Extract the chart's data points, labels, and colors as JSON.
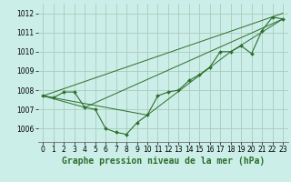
{
  "background_color": "#cceee8",
  "grid_color": "#aaccbb",
  "line_color": "#2d6e2d",
  "marker_color": "#2d6e2d",
  "xlabel": "Graphe pression niveau de la mer (hPa)",
  "xlabel_fontsize": 7,
  "tick_fontsize": 5.5,
  "xlim": [
    -0.5,
    23.5
  ],
  "ylim": [
    1005.3,
    1012.5
  ],
  "yticks": [
    1006,
    1007,
    1008,
    1009,
    1010,
    1011,
    1012
  ],
  "xticks": [
    0,
    1,
    2,
    3,
    4,
    5,
    6,
    7,
    8,
    9,
    10,
    11,
    12,
    13,
    14,
    15,
    16,
    17,
    18,
    19,
    20,
    21,
    22,
    23
  ],
  "series": [
    [
      0,
      1007.7
    ],
    [
      1,
      1007.6
    ],
    [
      2,
      1007.9
    ],
    [
      3,
      1007.9
    ],
    [
      4,
      1007.1
    ],
    [
      5,
      1007.0
    ],
    [
      6,
      1006.0
    ],
    [
      7,
      1005.8
    ],
    [
      8,
      1005.7
    ],
    [
      9,
      1006.3
    ],
    [
      10,
      1006.7
    ],
    [
      11,
      1007.7
    ],
    [
      12,
      1007.9
    ],
    [
      13,
      1008.0
    ],
    [
      14,
      1008.5
    ],
    [
      15,
      1008.8
    ],
    [
      16,
      1009.2
    ],
    [
      17,
      1010.0
    ],
    [
      18,
      1010.0
    ],
    [
      19,
      1010.3
    ],
    [
      20,
      1009.9
    ],
    [
      21,
      1011.1
    ],
    [
      22,
      1011.8
    ],
    [
      23,
      1011.7
    ]
  ],
  "line2": [
    [
      0,
      1007.7
    ],
    [
      23,
      1012.0
    ]
  ],
  "line3": [
    [
      0,
      1007.7
    ],
    [
      4,
      1007.1
    ],
    [
      23,
      1011.7
    ]
  ],
  "line4": [
    [
      0,
      1007.7
    ],
    [
      10,
      1006.7
    ],
    [
      18,
      1010.0
    ],
    [
      23,
      1011.7
    ]
  ]
}
